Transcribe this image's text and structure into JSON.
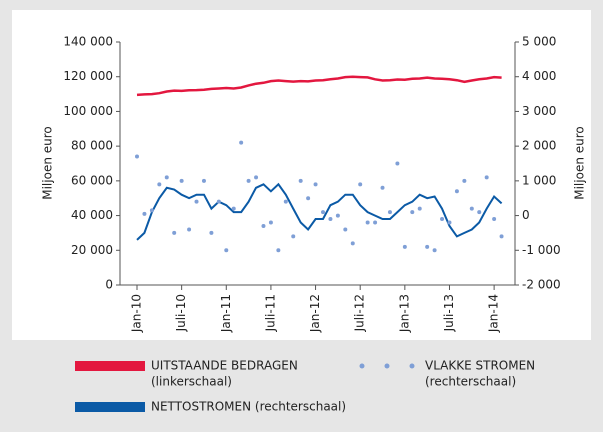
{
  "chart_data": {
    "type": "line",
    "y_label": "Miljoen euro",
    "y2_label": "Miljoen euro",
    "categories": [
      "Jan-10",
      null,
      null,
      null,
      null,
      null,
      "Juli-10",
      null,
      null,
      null,
      null,
      null,
      "Jan-11",
      null,
      null,
      null,
      null,
      null,
      "Juli-11",
      null,
      null,
      null,
      null,
      null,
      "Jan-12",
      null,
      null,
      null,
      null,
      null,
      "Juli-12",
      null,
      null,
      null,
      null,
      null,
      "Jan-13",
      null,
      null,
      null,
      null,
      null,
      "Juli-13",
      null,
      null,
      null,
      null,
      null,
      "Jan-14",
      null
    ],
    "ylim": [
      0,
      140000
    ],
    "yticks": [
      0,
      {
        "value": 20000,
        "label": "20 000"
      },
      {
        "value": 40000,
        "label": "40 000"
      },
      {
        "value": 60000,
        "label": "60 000"
      },
      {
        "value": 80000,
        "label": "80 000"
      },
      {
        "value": 100000,
        "label": "100 000"
      },
      {
        "value": 120000,
        "label": "120 000"
      },
      {
        "value": 140000,
        "label": "140 000"
      }
    ],
    "y2lim": [
      -2000,
      5000
    ],
    "y2ticks": [
      {
        "value": -2000,
        "label": "-2 000"
      },
      {
        "value": -1000,
        "label": "-1 000"
      },
      0,
      {
        "value": 1000,
        "label": "1 000"
      },
      {
        "value": 2000,
        "label": "2 000"
      },
      {
        "value": 3000,
        "label": "3 000"
      },
      {
        "value": 4000,
        "label": "4 000"
      },
      {
        "value": 5000,
        "label": "5 000"
      }
    ],
    "series": [
      {
        "name": "UITSTAANDE BEDRAGEN",
        "note": "(linkerschaal)",
        "color": "#e3173f",
        "style": "line",
        "axis": "y",
        "values": [
          109500,
          109800,
          110000,
          110500,
          111500,
          112000,
          111800,
          112200,
          112300,
          112500,
          113000,
          113200,
          113500,
          113200,
          113800,
          115000,
          116000,
          116500,
          117500,
          117800,
          117500,
          117200,
          117500,
          117300,
          117800,
          118000,
          118500,
          119000,
          119800,
          120000,
          119800,
          119600,
          118500,
          117800,
          118000,
          118400,
          118300,
          118800,
          119000,
          119500,
          119000,
          118800,
          118500,
          118000,
          117000,
          117800,
          118500,
          119000,
          119800,
          119500
        ]
      },
      {
        "name": "NETTOSTROMEN (rechterschaal)",
        "color": "#0b5aa6",
        "style": "line",
        "axis": "y2",
        "values": [
          -700,
          -500,
          100,
          500,
          800,
          750,
          600,
          500,
          600,
          600,
          200,
          400,
          300,
          100,
          100,
          400,
          800,
          900,
          700,
          900,
          600,
          200,
          -200,
          -400,
          -100,
          -100,
          300,
          400,
          600,
          600,
          300,
          100,
          0,
          -100,
          -100,
          100,
          300,
          400,
          600,
          500,
          550,
          200,
          -300,
          -600,
          -500,
          -400,
          -200,
          200,
          550,
          350
        ]
      },
      {
        "name": "VLAKKE STROMEN",
        "note": "(rechterschaal)",
        "color": "#7f9fd6",
        "style": "dots",
        "axis": "y2",
        "values": [
          1700,
          50,
          150,
          900,
          1100,
          -500,
          1000,
          -400,
          400,
          1000,
          -500,
          400,
          -1000,
          200,
          2100,
          1000,
          1100,
          -300,
          -200,
          -1000,
          400,
          -600,
          1000,
          500,
          900,
          100,
          -100,
          0,
          -400,
          -800,
          900,
          -200,
          -200,
          800,
          100,
          1500,
          -900,
          100,
          200,
          -900,
          -1000,
          -100,
          -200,
          700,
          1000,
          200,
          100,
          1100,
          -100,
          -600
        ]
      }
    ]
  }
}
